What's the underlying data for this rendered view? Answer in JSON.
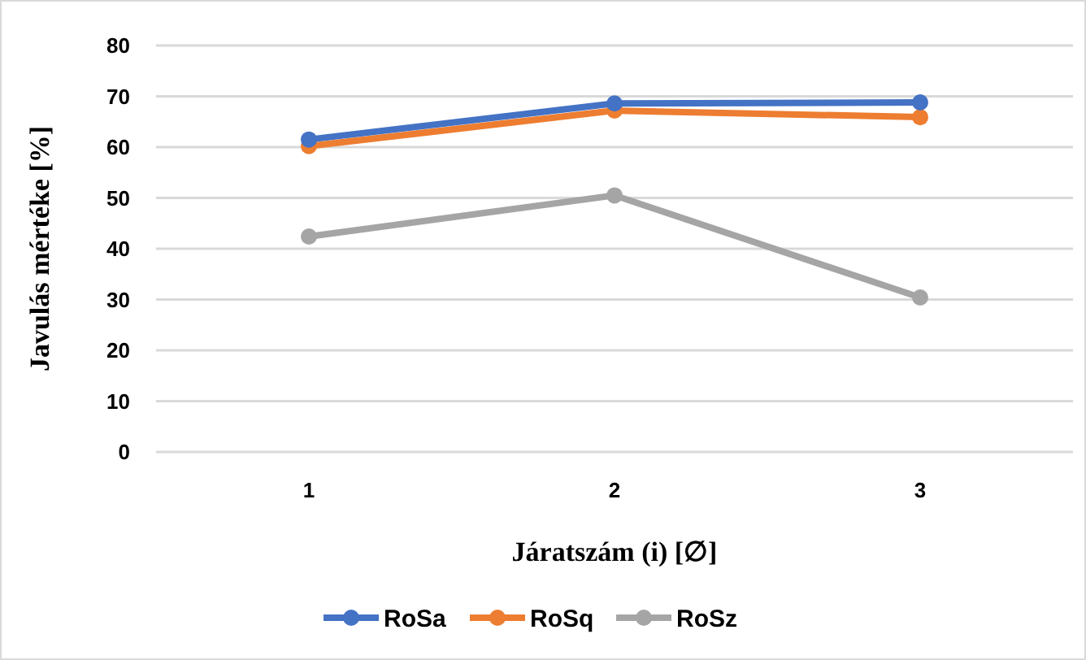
{
  "chart_data": {
    "type": "line",
    "xlabel": "Járatszám (i) [∅]",
    "ylabel": "Javulás mértéke [%]",
    "categories": [
      "1",
      "2",
      "3"
    ],
    "series": [
      {
        "name": "RoSa",
        "color": "#4472c4",
        "values": [
          61.5,
          68.6,
          68.8
        ]
      },
      {
        "name": "RoSq",
        "color": "#ed7d31",
        "values": [
          60.2,
          67.2,
          65.9
        ]
      },
      {
        "name": "RoSz",
        "color": "#a5a5a5",
        "values": [
          42.4,
          50.5,
          30.4
        ]
      }
    ],
    "ylim": [
      0,
      80
    ],
    "yticks": [
      0,
      10,
      20,
      30,
      40,
      50,
      60,
      70,
      80
    ],
    "grid": "y",
    "legend": "bottom",
    "marker": "circle",
    "line_style": "solid"
  }
}
